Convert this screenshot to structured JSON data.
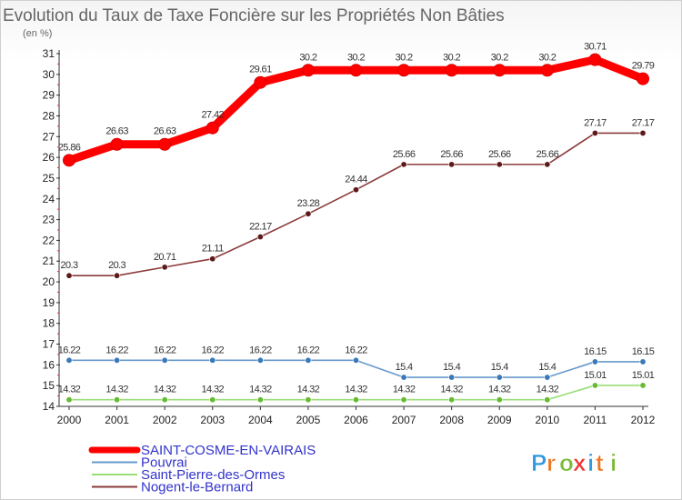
{
  "chart_data": {
    "type": "line",
    "title": "Evolution du Taux de Taxe Foncière sur les Propriétés Non Bâties",
    "unit_label": "(en %)",
    "xlabel": "",
    "ylabel": "(en %)",
    "ylim": [
      14,
      31
    ],
    "yticks": [
      14,
      15,
      16,
      17,
      18,
      19,
      20,
      21,
      22,
      23,
      24,
      25,
      26,
      27,
      28,
      29,
      30,
      31
    ],
    "grid": false,
    "legend_position": "bottom-left",
    "categories": [
      "2000",
      "2001",
      "2002",
      "2003",
      "2004",
      "2005",
      "2006",
      "2007",
      "2008",
      "2009",
      "2010",
      "2011",
      "2012"
    ],
    "series": [
      {
        "name": "SAINT-COSME-EN-VAIRAIS",
        "color": "#ff0000",
        "values": [
          25.86,
          26.63,
          26.63,
          27.42,
          29.61,
          30.2,
          30.2,
          30.2,
          30.2,
          30.2,
          30.2,
          30.71,
          29.79
        ],
        "labels": [
          "25.86",
          "26.63",
          "26.63",
          "27.42",
          "29.61",
          "30.2",
          "30.2",
          "30.2",
          "30.2",
          "30.2",
          "30.2",
          "30.71",
          "29.79"
        ]
      },
      {
        "name": "Pouvrai",
        "color": "#6699cc",
        "marker": "#3a78b8",
        "values": [
          16.22,
          16.22,
          16.22,
          16.22,
          16.22,
          16.22,
          16.22,
          15.4,
          15.4,
          15.4,
          15.4,
          16.15,
          16.15
        ],
        "labels": [
          "16.22",
          "16.22",
          "16.22",
          "16.22",
          "16.22",
          "16.22",
          "16.22",
          "15.4",
          "15.4",
          "15.4",
          "15.4",
          "16.15",
          "16.15"
        ]
      },
      {
        "name": "Saint-Pierre-des-Ormes",
        "color": "#99dd77",
        "marker": "#66bb33",
        "values": [
          14.32,
          14.32,
          14.32,
          14.32,
          14.32,
          14.32,
          14.32,
          14.32,
          14.32,
          14.32,
          14.32,
          15.01,
          15.01
        ],
        "labels": [
          "14.32",
          "14.32",
          "14.32",
          "14.32",
          "14.32",
          "14.32",
          "14.32",
          "14.32",
          "14.32",
          "14.32",
          "14.32",
          "15.01",
          "15.01"
        ]
      },
      {
        "name": "Nogent-le-Bernard",
        "color": "#8b3a3a",
        "marker": "#5e1a1a",
        "values": [
          20.3,
          20.3,
          20.71,
          21.11,
          22.17,
          23.28,
          24.44,
          25.66,
          25.66,
          25.66,
          25.66,
          27.17,
          27.17
        ],
        "labels": [
          "20.3",
          "20.3",
          "20.71",
          "21.11",
          "22.17",
          "23.28",
          "24.44",
          "25.66",
          "25.66",
          "25.66",
          "25.66",
          "27.17",
          "27.17"
        ]
      }
    ]
  },
  "logo": {
    "letters": [
      "P",
      "r",
      "o",
      "x",
      "i",
      "t",
      "i"
    ],
    "colors": [
      "#3399dd",
      "#ee7722",
      "#77bb33",
      "#ee3333",
      "#3399dd",
      "#ee7722",
      "#77bb33"
    ]
  }
}
